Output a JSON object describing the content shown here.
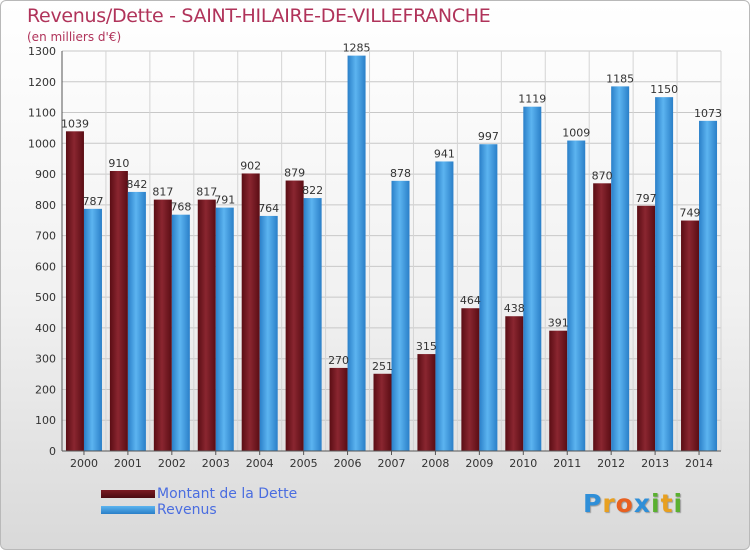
{
  "header": {
    "title": "Revenus/Dette - SAINT-HILAIRE-DE-VILLEFRANCHE",
    "subtitle": "(en milliers d'€)"
  },
  "legend": {
    "items": [
      {
        "label": "Montant de la Dette",
        "color": "#7a1a22"
      },
      {
        "label": "Revenus",
        "color": "#4aa3e6"
      }
    ]
  },
  "logo": {
    "text": "Proxiti"
  },
  "chart_data": {
    "type": "bar",
    "title": "Revenus/Dette - SAINT-HILAIRE-DE-VILLEFRANCHE",
    "subtitle": "(en milliers d'€)",
    "xlabel": "",
    "ylabel": "",
    "ylim": [
      0,
      1300
    ],
    "yticks": [
      0,
      100,
      200,
      300,
      400,
      500,
      600,
      700,
      800,
      900,
      1000,
      1100,
      1200,
      1300
    ],
    "grid": true,
    "legend_position": "bottom-left",
    "categories": [
      "2000",
      "2001",
      "2002",
      "2003",
      "2004",
      "2005",
      "2006",
      "2007",
      "2008",
      "2009",
      "2010",
      "2011",
      "2012",
      "2013",
      "2014"
    ],
    "series": [
      {
        "name": "Montant de la Dette",
        "color": "#7a1a22",
        "values": [
          1039,
          910,
          817,
          817,
          902,
          879,
          270,
          251,
          315,
          464,
          438,
          391,
          870,
          797,
          749
        ]
      },
      {
        "name": "Revenus",
        "color": "#4aa3e6",
        "values": [
          787,
          842,
          768,
          791,
          764,
          822,
          1285,
          878,
          941,
          997,
          1119,
          1009,
          1185,
          1150,
          1073
        ]
      }
    ]
  }
}
